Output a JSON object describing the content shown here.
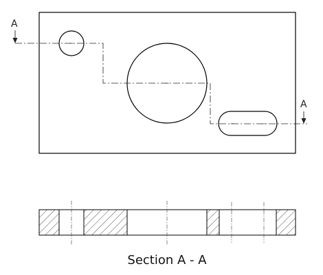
{
  "section_marker": {
    "left_letter": "A",
    "right_letter": "A"
  },
  "caption": {
    "text": "Section A - A"
  }
}
